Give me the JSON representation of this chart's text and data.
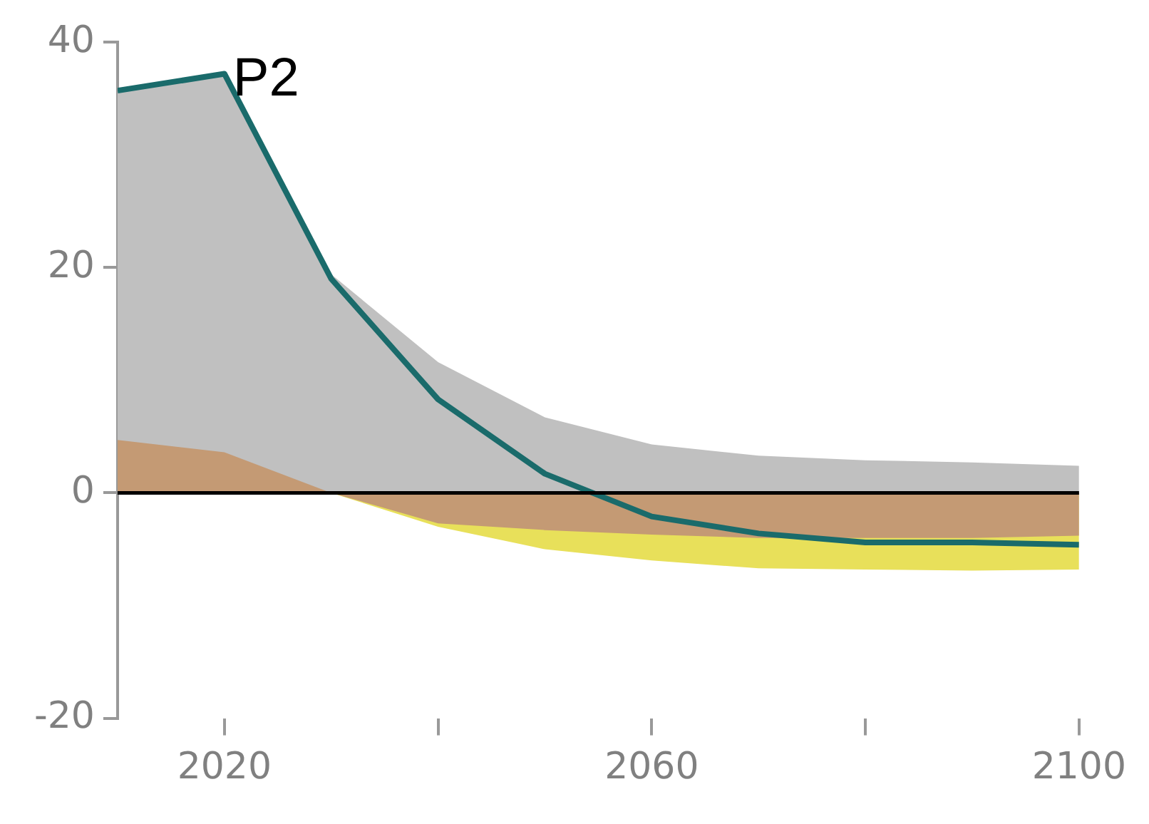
{
  "chart_data": {
    "type": "area",
    "title": "P2",
    "x": [
      2010,
      2020,
      2030,
      2040,
      2050,
      2060,
      2070,
      2080,
      2090,
      2100
    ],
    "series": [
      {
        "color": "#c0c0c0",
        "values": [
          35.7,
          37.2,
          19.4,
          11.6,
          6.7,
          4.3,
          3.3,
          2.9,
          2.7,
          2.4
        ]
      },
      {
        "color": "#e8e05a",
        "values": [
          0,
          0,
          0,
          -3.0,
          -5.0,
          -6.0,
          -6.7,
          -6.8,
          -6.9,
          -6.8
        ]
      },
      {
        "color": "#c49a74",
        "values": [
          4.7,
          3.6,
          0,
          -2.7,
          -3.3,
          -3.7,
          -4.0,
          -4.0,
          -4.0,
          -3.8
        ]
      },
      {
        "type": "line",
        "color": "#1a6b6b",
        "values": [
          35.7,
          37.2,
          19.0,
          8.3,
          1.7,
          -2.1,
          -3.6,
          -4.4,
          -4.4,
          -4.6
        ]
      }
    ],
    "xlim": [
      2010,
      2100
    ],
    "xticks": [
      2020,
      {
        "value": 2040,
        "label": null
      },
      2060,
      {
        "value": 2080,
        "label": null
      },
      2100
    ],
    "ylim": [
      -20,
      40
    ],
    "yticks": [
      -20,
      0,
      20,
      40
    ],
    "ref_lines": [
      {
        "axis": "y",
        "value": 0,
        "color": "#000000"
      }
    ],
    "grid": false,
    "legend": false
  }
}
